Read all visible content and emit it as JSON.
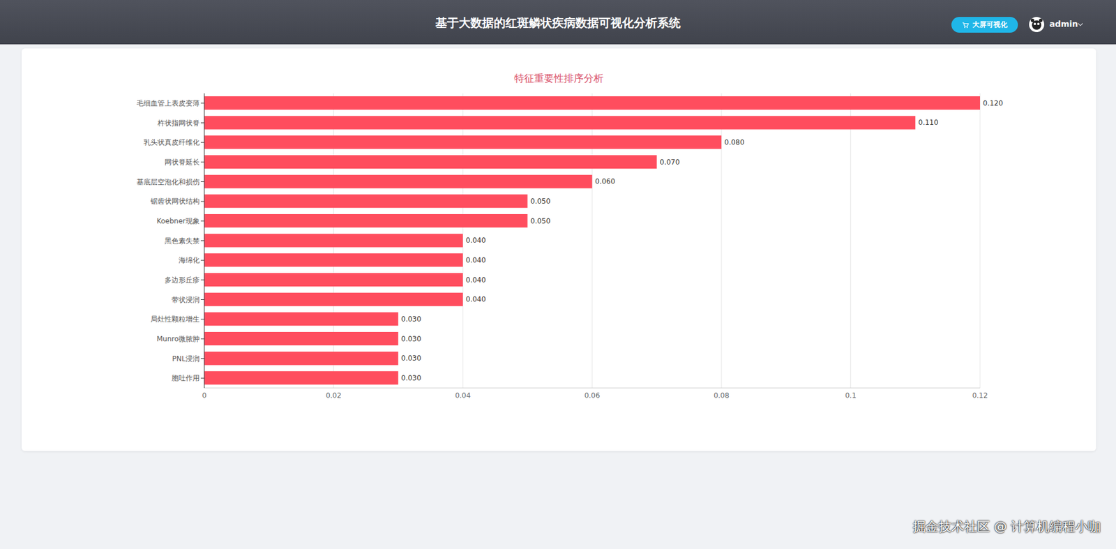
{
  "header": {
    "title": "基于大数据的红斑鳞状疾病数据可视化分析系统",
    "button": "大屏可视化",
    "user": "admin"
  },
  "watermark": "掘金技术社区 @ 计算机编程小咖",
  "chart_data": {
    "type": "bar",
    "title": "特征重要性排序分析",
    "orientation": "horizontal",
    "categories": [
      "毛细血管上表皮变薄",
      "杵状指网状脊",
      "乳头状真皮纤维化",
      "网状脊延长",
      "基底层空泡化和损伤",
      "锯齿状网状结构",
      "Koebner现象",
      "黑色素失禁",
      "海绵化",
      "多边形丘疹",
      "带状浸润",
      "局灶性颗粒增生",
      "Munro微脓肿",
      "PNL浸润",
      "胞吐作用"
    ],
    "values": [
      0.12,
      0.11,
      0.08,
      0.07,
      0.06,
      0.05,
      0.05,
      0.04,
      0.04,
      0.04,
      0.04,
      0.03,
      0.03,
      0.03,
      0.03
    ],
    "value_labels": [
      "0.120",
      "0.110",
      "0.080",
      "0.070",
      "0.060",
      "0.050",
      "0.050",
      "0.040",
      "0.040",
      "0.040",
      "0.040",
      "0.030",
      "0.030",
      "0.030",
      "0.030"
    ],
    "color": "#ff4d5e",
    "xlim": [
      0,
      0.12
    ],
    "xticks": [
      0,
      0.02,
      0.04,
      0.06,
      0.08,
      0.1,
      0.12
    ],
    "grid": true,
    "data_labels": true
  }
}
